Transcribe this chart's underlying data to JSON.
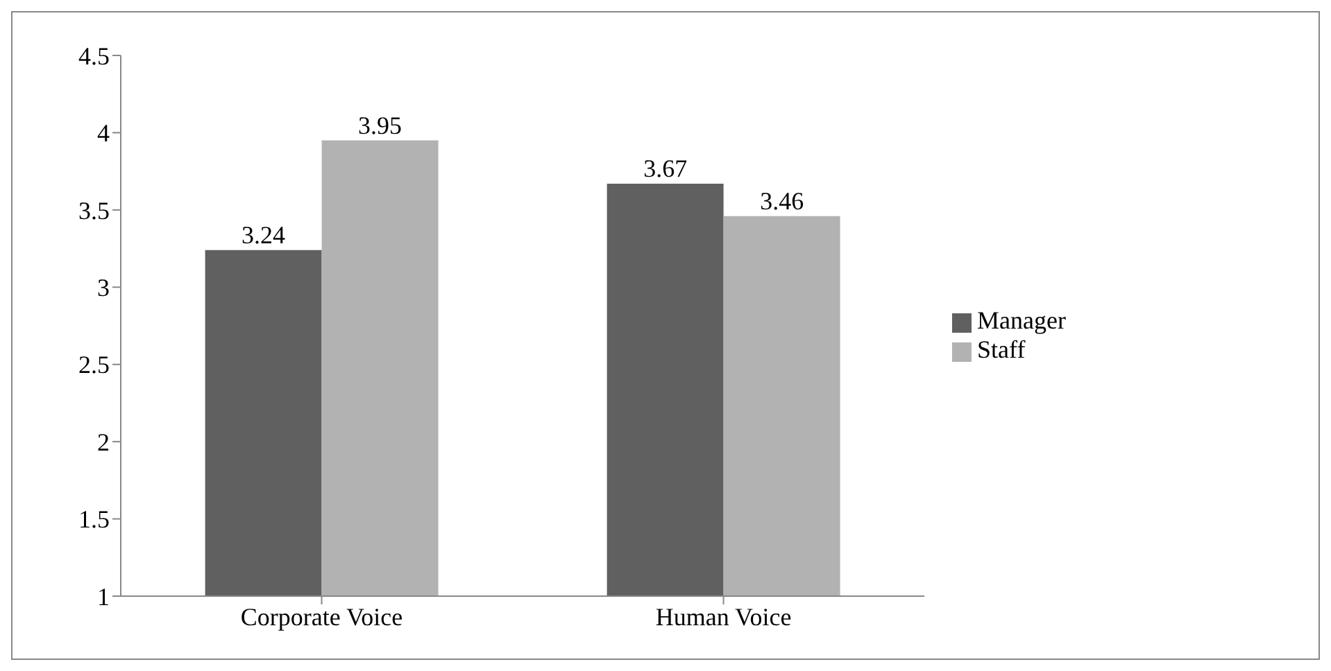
{
  "chart_data": {
    "type": "bar",
    "categories": [
      "Corporate Voice",
      "Human Voice"
    ],
    "series": [
      {
        "name": "Manager",
        "color": "#606060",
        "values": [
          3.24,
          3.67
        ]
      },
      {
        "name": "Staff",
        "color": "#b2b2b2",
        "values": [
          3.95,
          3.46
        ]
      }
    ],
    "ylim": [
      1,
      4.5
    ],
    "yticks": [
      1,
      1.5,
      2,
      2.5,
      3,
      3.5,
      4,
      4.5
    ],
    "data_labels": true,
    "legend": "right"
  }
}
